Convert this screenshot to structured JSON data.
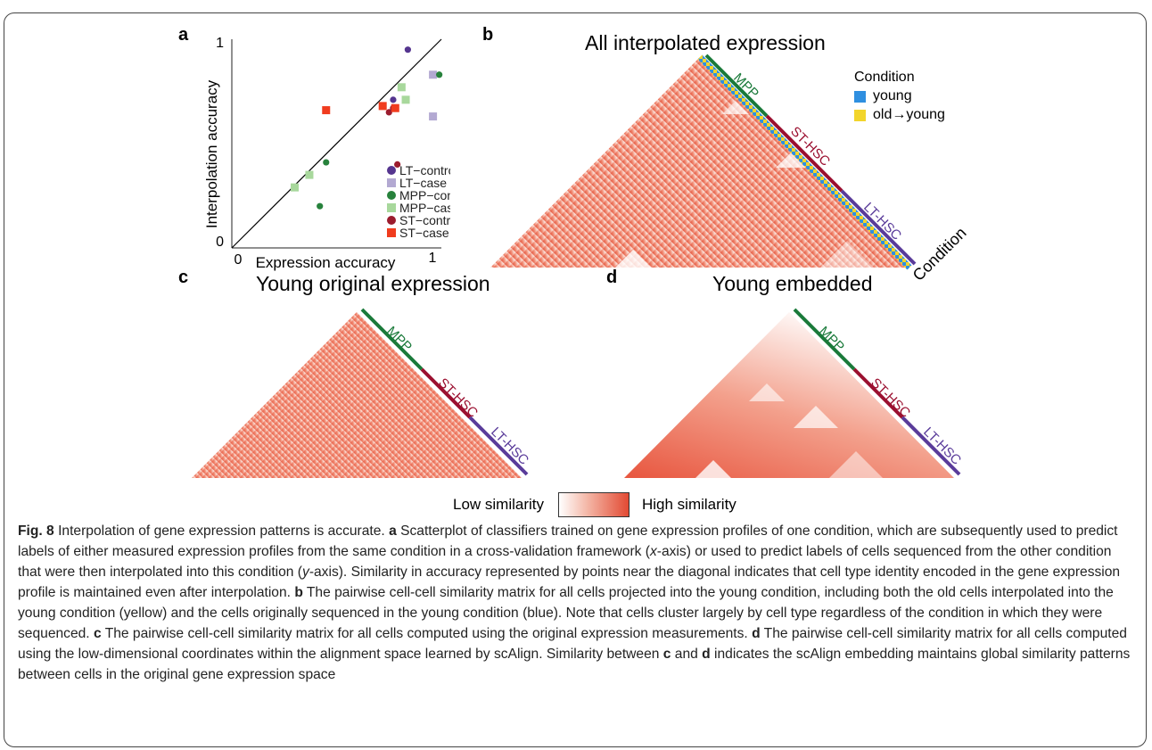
{
  "panel_labels": {
    "a": "a",
    "b": "b",
    "c": "c",
    "d": "d"
  },
  "panel_titles": {
    "b": "All interpolated expression",
    "c": "Young original expression",
    "d": "Young embedded"
  },
  "heatmap_labels": {
    "mpp": "MPP",
    "st": "ST-HSC",
    "lt": "LT-HSC",
    "condition": "Condition"
  },
  "condition_legend": {
    "title": "Condition",
    "items": [
      {
        "label": "young",
        "color": "#2f8fe0"
      },
      {
        "label": "old→young",
        "color": "#f2d52b"
      }
    ]
  },
  "similarity_legend": {
    "low": "Low similarity",
    "high": "High similarity"
  },
  "colors": {
    "mpp": "#1a7a3a",
    "st": "#9b1030",
    "lt": "#5a3c9a",
    "heat": "#e24a33"
  },
  "chart_data": {
    "type": "scatter",
    "xlabel": "Expression accuracy",
    "ylabel": "Interpolation accuracy",
    "xlim": [
      0,
      1
    ],
    "ylim": [
      0,
      1
    ],
    "x_ticks": [
      "0",
      "1"
    ],
    "y_ticks": [
      "0",
      "1"
    ],
    "diagonal": true,
    "series": [
      {
        "name": "LT−control",
        "color": "#55358f",
        "marker": "circle",
        "points": [
          [
            0.84,
            0.95
          ],
          [
            0.77,
            0.71
          ]
        ]
      },
      {
        "name": "LT−case",
        "color": "#b3a9d2",
        "marker": "square",
        "points": [
          [
            0.96,
            0.83
          ],
          [
            0.96,
            0.63
          ]
        ]
      },
      {
        "name": "MPP−control",
        "color": "#27823c",
        "marker": "circle",
        "points": [
          [
            0.99,
            0.83
          ],
          [
            0.45,
            0.41
          ],
          [
            0.42,
            0.2
          ]
        ]
      },
      {
        "name": "MPP−case",
        "color": "#a8d89c",
        "marker": "square",
        "points": [
          [
            0.81,
            0.77
          ],
          [
            0.83,
            0.71
          ],
          [
            0.37,
            0.35
          ],
          [
            0.3,
            0.29
          ]
        ]
      },
      {
        "name": "ST−control",
        "color": "#9b1c2e",
        "marker": "circle",
        "points": [
          [
            0.77,
            0.67
          ],
          [
            0.75,
            0.65
          ],
          [
            0.79,
            0.4
          ]
        ]
      },
      {
        "name": "ST−case",
        "color": "#f03c1e",
        "marker": "square",
        "points": [
          [
            0.45,
            0.66
          ],
          [
            0.72,
            0.68
          ],
          [
            0.78,
            0.67
          ]
        ]
      }
    ]
  },
  "caption": {
    "fig": "Fig. 8",
    "title": " Interpolation of gene expression patterns is accurate. ",
    "a_label": "a",
    "a_text_1": " Scatterplot of classifiers trained on gene expression profiles of one condition, which are subsequently used to predict labels of either measured expression profiles from the same condition in a cross-validation framework (",
    "a_x": "x",
    "a_text_2": "-axis) or used to predict labels of cells sequenced from the other condition that were then interpolated into this condition (",
    "a_y": "y",
    "a_text_3": "-axis). Similarity in accuracy represented by points near the diagonal indicates that cell type identity encoded in the gene expression profile is maintained even after interpolation. ",
    "b_label": "b",
    "b_text": " The pairwise cell-cell similarity matrix for all cells projected into the young condition, including both the old cells interpolated into the young condition (yellow) and the cells originally sequenced in the young condition (blue). Note that cells cluster largely by cell type regardless of the condition in which they were sequenced. ",
    "c_label": "c",
    "c_text": " The pairwise cell-cell similarity matrix for all cells computed using the original expression measurements. ",
    "d_label": "d",
    "d_text": " The pairwise cell-cell similarity matrix for all cells computed using the low-dimensional coordinates within the alignment space learned by scAlign. Similarity between ",
    "c_label2": "c",
    "and_text": " and ",
    "d_label2": "d",
    "end_text": " indicates the scAlign embedding maintains global similarity patterns between cells in the original gene expression space"
  }
}
